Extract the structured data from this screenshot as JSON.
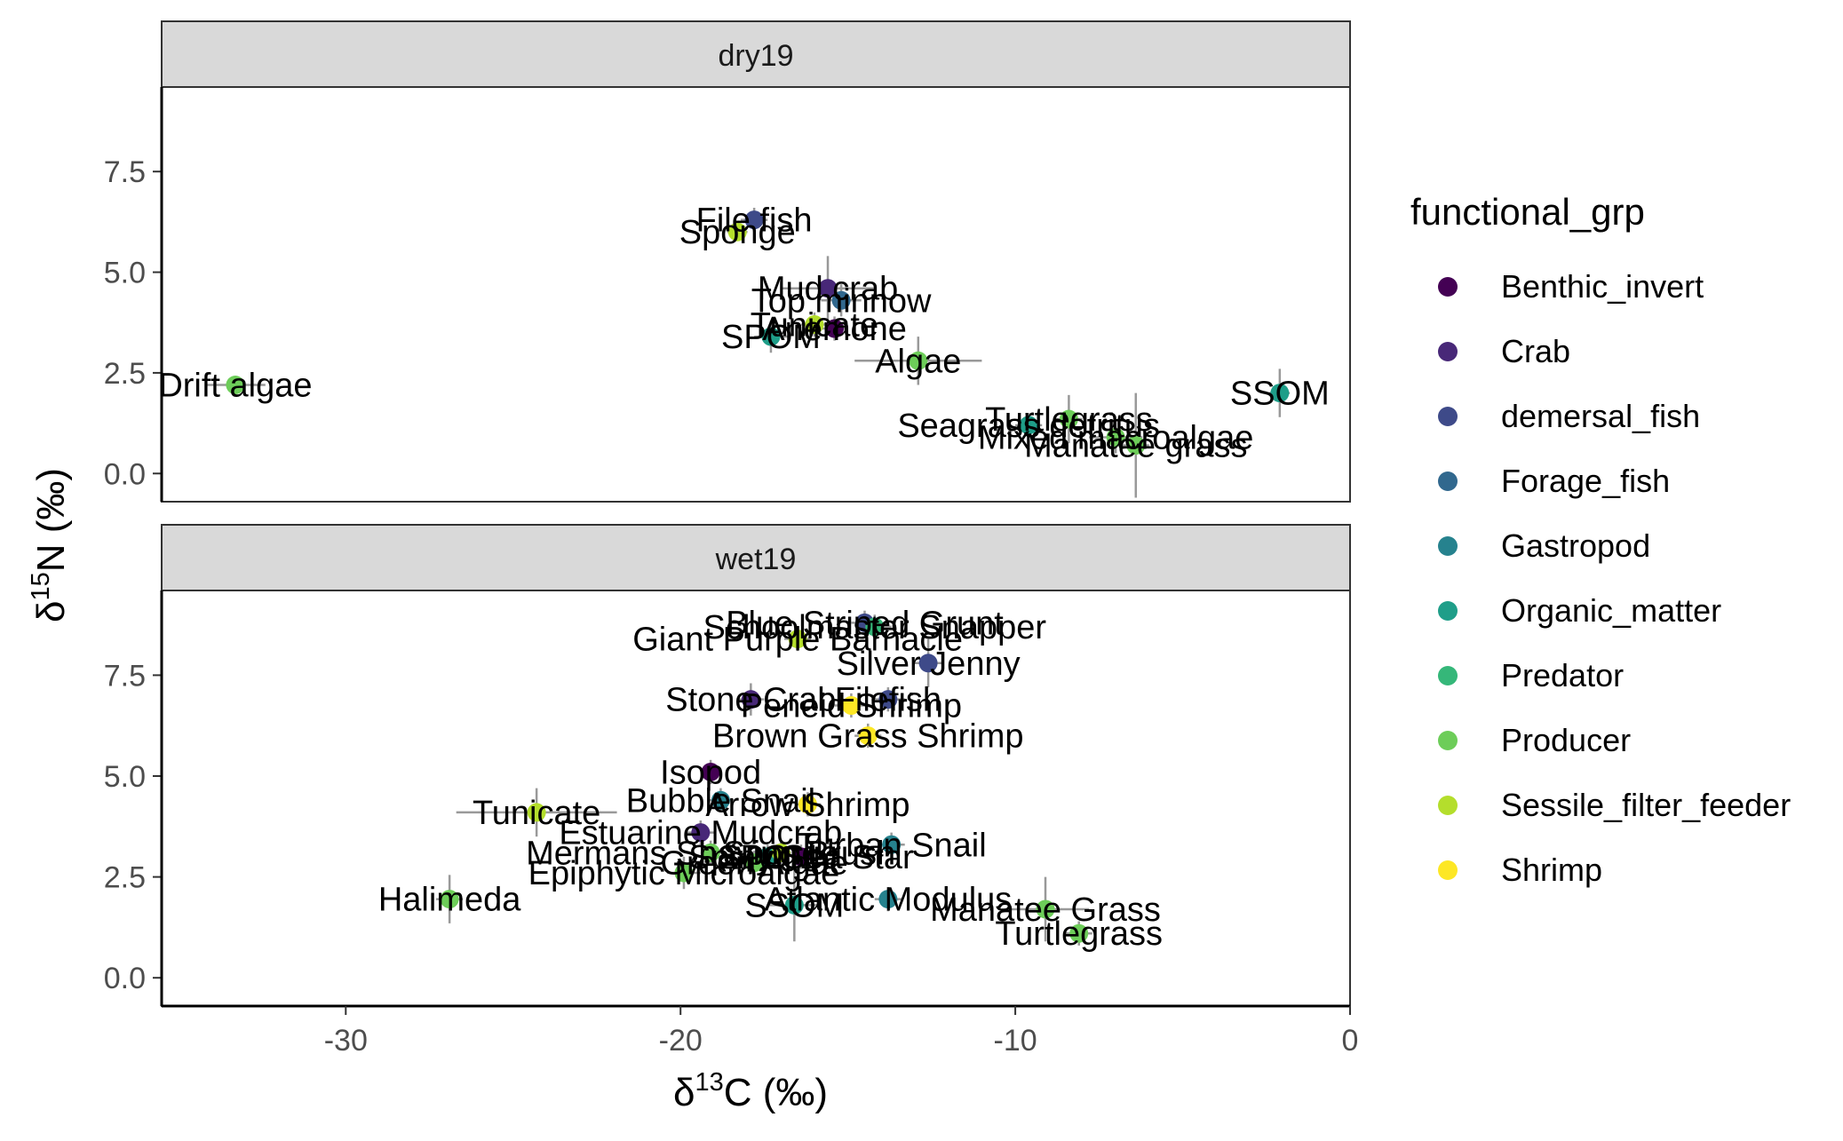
{
  "chart_data": {
    "type": "scatter",
    "xlabel": {
      "prefix": "δ",
      "sup": "13",
      "suffix": "C (‰)"
    },
    "ylabel": {
      "prefix": "δ",
      "sup": "15",
      "suffix": "N (‰)"
    },
    "xlim": [
      -35.5,
      0
    ],
    "xticks": [
      -30,
      -20,
      -10,
      0
    ],
    "yticks": [
      0.0,
      2.5,
      5.0,
      7.5
    ],
    "ytick_labels": [
      "0.0",
      "2.5",
      "5.0",
      "7.5"
    ],
    "grid": false,
    "legend": {
      "title": "functional_grp",
      "placement": "right",
      "items": [
        {
          "name": "Benthic_invert",
          "color": "#440154"
        },
        {
          "name": "Crab",
          "color": "#482878"
        },
        {
          "name": "demersal_fish",
          "color": "#3E4A89"
        },
        {
          "name": "Forage_fish",
          "color": "#31688E"
        },
        {
          "name": "Gastropod",
          "color": "#26828E"
        },
        {
          "name": "Organic_matter",
          "color": "#1F9E89"
        },
        {
          "name": "Predator",
          "color": "#35B779"
        },
        {
          "name": "Producer",
          "color": "#6DCD59"
        },
        {
          "name": "Sessile_filter_feeder",
          "color": "#B4DE2C"
        },
        {
          "name": "Shrimp",
          "color": "#FDE725"
        }
      ]
    },
    "panels": [
      {
        "title": "dry19",
        "ylim": [
          -0.7,
          9.6
        ],
        "points": [
          {
            "label": "File fish",
            "group": "demersal_fish",
            "x": -17.8,
            "y": 6.3,
            "xerr": 0.4,
            "yerr": 0.3
          },
          {
            "label": "Sponge",
            "group": "Sessile_filter_feeder",
            "x": -18.3,
            "y": 6.0,
            "xerr": 0.3,
            "yerr": 0.2
          },
          {
            "label": "Mud crab",
            "group": "Crab",
            "x": -15.6,
            "y": 4.6,
            "xerr": 1.4,
            "yerr": 0.8
          },
          {
            "label": "Top minnow",
            "group": "Forage_fish",
            "x": -15.2,
            "y": 4.3,
            "xerr": 0.6,
            "yerr": 0.4
          },
          {
            "label": "Tunicate",
            "group": "Sessile_filter_feeder",
            "x": -16.0,
            "y": 3.7,
            "xerr": 0.4,
            "yerr": 0.3
          },
          {
            "label": "Anemone",
            "group": "Benthic_invert",
            "x": -15.4,
            "y": 3.6,
            "xerr": 0.4,
            "yerr": 0.3
          },
          {
            "label": "SPOM",
            "group": "Organic_matter",
            "x": -17.3,
            "y": 3.4,
            "xerr": 0.5,
            "yerr": 0.4
          },
          {
            "label": "Algae",
            "group": "Producer",
            "x": -12.9,
            "y": 2.8,
            "xerr": 1.9,
            "yerr": 0.6
          },
          {
            "label": "Drift algae",
            "group": "Producer",
            "x": -33.3,
            "y": 2.2,
            "xerr": 0.9,
            "yerr": 0.2
          },
          {
            "label": "SSOM",
            "group": "Organic_matter",
            "x": -2.1,
            "y": 2.0,
            "xerr": 0.3,
            "yerr": 0.6
          },
          {
            "label": "Seagrass detritus",
            "group": "Organic_matter",
            "x": -9.6,
            "y": 1.2,
            "xerr": 0.4,
            "yerr": 0.3
          },
          {
            "label": "Turtlegrass",
            "group": "Producer",
            "x": -8.4,
            "y": 1.35,
            "xerr": 0.4,
            "yerr": 0.6
          },
          {
            "label": "Mixed macroalgae",
            "group": "Producer",
            "x": -7.0,
            "y": 0.9,
            "xerr": 0.8,
            "yerr": 0.4
          },
          {
            "label": "Manatee grass",
            "group": "Producer",
            "x": -6.4,
            "y": 0.7,
            "xerr": 0.4,
            "yerr": 1.3
          }
        ]
      },
      {
        "title": "wet19",
        "ylim": [
          -0.7,
          9.6
        ],
        "points": [
          {
            "label": "Blue Striped Grunt",
            "group": "demersal_fish",
            "x": -14.5,
            "y": 8.8,
            "xerr": 0.4,
            "yerr": 0.3
          },
          {
            "label": "Schoolmaster Snapper",
            "group": "Predator",
            "x": -14.2,
            "y": 8.7,
            "xerr": 0.5,
            "yerr": 0.3
          },
          {
            "label": "Giant Purple Barnacle",
            "group": "Sessile_filter_feeder",
            "x": -16.5,
            "y": 8.4,
            "xerr": 0.4,
            "yerr": 0.3
          },
          {
            "label": "Silver Jenny",
            "group": "demersal_fish",
            "x": -12.6,
            "y": 7.8,
            "xerr": 0.4,
            "yerr": 0.6
          },
          {
            "label": "Stone Crab",
            "group": "Crab",
            "x": -17.9,
            "y": 6.9,
            "xerr": 0.4,
            "yerr": 0.4
          },
          {
            "label": "Filefish",
            "group": "demersal_fish",
            "x": -13.8,
            "y": 6.9,
            "xerr": 0.5,
            "yerr": 0.3
          },
          {
            "label": "Peneid Shrimp",
            "group": "Shrimp",
            "x": -14.9,
            "y": 6.75,
            "xerr": 0.5,
            "yerr": 0.3
          },
          {
            "label": "Brown Grass Shrimp",
            "group": "Shrimp",
            "x": -14.4,
            "y": 6.0,
            "xerr": 0.4,
            "yerr": 0.3
          },
          {
            "label": "Isopod",
            "group": "Benthic_invert",
            "x": -19.1,
            "y": 5.1,
            "xerr": 0.3,
            "yerr": 0.3
          },
          {
            "label": "Bubble Snail",
            "group": "Gastropod",
            "x": -18.8,
            "y": 4.4,
            "xerr": 0.4,
            "yerr": 0.3
          },
          {
            "label": "Arrow Shrimp",
            "group": "Shrimp",
            "x": -16.2,
            "y": 4.3,
            "xerr": 0.4,
            "yerr": 0.3
          },
          {
            "label": "Tunicate",
            "group": "Sessile_filter_feeder",
            "x": -24.3,
            "y": 4.1,
            "xerr": 2.4,
            "yerr": 0.6
          },
          {
            "label": "Estuarine Mudcrab",
            "group": "Crab",
            "x": -19.4,
            "y": 3.6,
            "xerr": 0.4,
            "yerr": 0.3
          },
          {
            "label": "Turban Snail",
            "group": "Gastropod",
            "x": -13.7,
            "y": 3.3,
            "xerr": 0.4,
            "yerr": 0.3
          },
          {
            "label": "Mermans Shaving Brush",
            "group": "Producer",
            "x": -19.1,
            "y": 3.1,
            "xerr": 0.3,
            "yerr": 0.3
          },
          {
            "label": "SPOM",
            "group": "Organic_matter",
            "x": -17.4,
            "y": 3.0,
            "xerr": 0.4,
            "yerr": 0.3
          },
          {
            "label": "Sponge",
            "group": "Sessile_filter_feeder",
            "x": -17.0,
            "y": 3.1,
            "xerr": 0.3,
            "yerr": 0.3
          },
          {
            "label": "Spiny Sea Star",
            "group": "Benthic_invert",
            "x": -16.4,
            "y": 3.0,
            "xerr": 0.3,
            "yerr": 0.3
          },
          {
            "label": "Green Algae",
            "group": "Producer",
            "x": -17.8,
            "y": 2.85,
            "xerr": 0.3,
            "yerr": 0.3
          },
          {
            "label": "Epiphytic Microalgae",
            "group": "Producer",
            "x": -19.9,
            "y": 2.6,
            "xerr": 0.5,
            "yerr": 0.4
          },
          {
            "label": "Halimeda",
            "group": "Producer",
            "x": -26.9,
            "y": 1.95,
            "xerr": 0.4,
            "yerr": 0.6
          },
          {
            "label": "Atlantic Modulus",
            "group": "Gastropod",
            "x": -13.8,
            "y": 1.95,
            "xerr": 0.4,
            "yerr": 0.3
          },
          {
            "label": "SSOM",
            "group": "Organic_matter",
            "x": -16.6,
            "y": 1.8,
            "xerr": 0.8,
            "yerr": 0.9
          },
          {
            "label": "Manatee Grass",
            "group": "Producer",
            "x": -9.1,
            "y": 1.7,
            "xerr": 1.3,
            "yerr": 0.8
          },
          {
            "label": "Turtlegrass",
            "group": "Producer",
            "x": -8.1,
            "y": 1.1,
            "xerr": 0.4,
            "yerr": 0.3
          }
        ]
      }
    ]
  }
}
